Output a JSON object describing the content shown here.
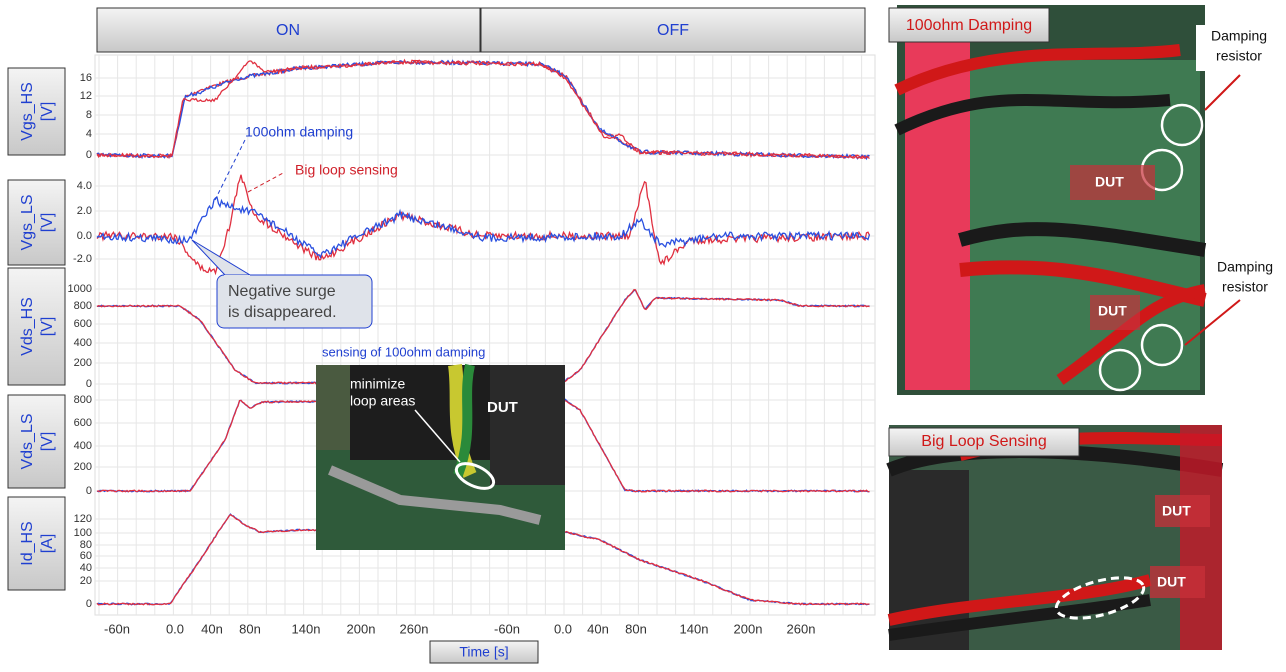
{
  "header": {
    "on": "ON",
    "off": "OFF"
  },
  "panels": [
    {
      "label": [
        "Vgs_HS",
        "[V]"
      ],
      "ticks": [
        "16",
        "12",
        "8",
        "4",
        "0"
      ]
    },
    {
      "label": [
        "Vgs_LS",
        "[V]"
      ],
      "ticks": [
        "4.0",
        "2.0",
        "0.0",
        "-2.0"
      ]
    },
    {
      "label": [
        "Vds_HS",
        "[V]"
      ],
      "ticks": [
        "1000",
        "800",
        "600",
        "400",
        "200",
        "0"
      ]
    },
    {
      "label": [
        "Vds_LS",
        "[V]"
      ],
      "ticks": [
        "800",
        "600",
        "400",
        "200",
        "0"
      ]
    },
    {
      "label": [
        "Id_HS",
        "[A]"
      ],
      "ticks": [
        "120",
        "100",
        "80",
        "60",
        "40",
        "20",
        "0"
      ]
    }
  ],
  "x_ticks": [
    [
      "-60n",
      "0.0",
      "40n",
      "80n",
      "140n",
      "200n",
      "260n"
    ],
    [
      "-60n",
      "0.0",
      "40n",
      "80n",
      "140n",
      "200n",
      "260n"
    ]
  ],
  "x_label": "Time [s]",
  "annotations": {
    "damping": "100ohm damping",
    "big_loop": "Big loop sensing",
    "callout": [
      "Negative surge",
      "is disappeared."
    ]
  },
  "inset": {
    "caption": "sensing of 100ohm damping",
    "note": [
      "minimize",
      "loop areas"
    ],
    "dut": "DUT"
  },
  "photo_top": {
    "title": "100ohm Damping",
    "resistor_1": [
      "Damping",
      "resistor"
    ],
    "resistor_2": [
      "Damping",
      "resistor"
    ],
    "dut_1": "DUT",
    "dut_2": "DUT"
  },
  "photo_bottom": {
    "title": "Big Loop Sensing",
    "dut_1": "DUT",
    "dut_2": "DUT"
  }
}
